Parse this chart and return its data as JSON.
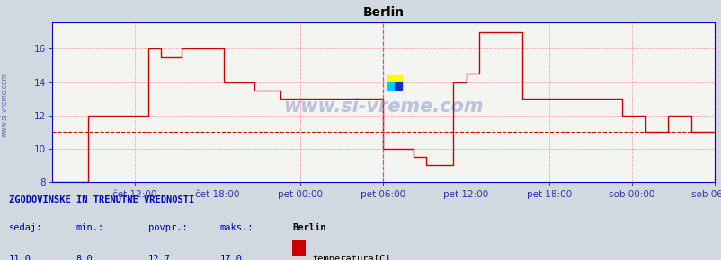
{
  "title": "Berlin",
  "bg_color": "#d0d8e0",
  "plot_bg_color": "#f4f4f0",
  "grid_color": "#ffaaaa",
  "line_color": "#cc0000",
  "avg_value": 11.0,
  "avg_line_color": "#cc0000",
  "ylim": [
    8,
    17.6
  ],
  "yticks": [
    8,
    10,
    12,
    14,
    16
  ],
  "tick_label_color": "#3333aa",
  "title_color": "#000000",
  "watermark": "www.si-vreme.com",
  "watermark_color": "#2244aa",
  "xtick_labels": [
    "čet 12:00",
    "čet 18:00",
    "pet 00:00",
    "pet 06:00",
    "pet 12:00",
    "pet 18:00",
    "sob 00:00",
    "sob 06:00"
  ],
  "xtick_positions": [
    0.125,
    0.25,
    0.375,
    0.5,
    0.625,
    0.75,
    0.875,
    1.0
  ],
  "vline_x": 0.5,
  "vline_right_x": 1.0,
  "footer_bg": "#d0d8e0",
  "footer_text1": "ZGODOVINSKE IN TRENUTNE VREDNOSTI",
  "footer_labels": [
    "sedaj:",
    "min.:",
    "povpr.:",
    "maks.:"
  ],
  "footer_values": [
    "11,0",
    "8,0",
    "12,7",
    "17,0"
  ],
  "footer_station": "Berlin",
  "footer_series": "temperatura[C]",
  "legend_color": "#cc0000",
  "spine_color": "#0000cc",
  "left_label": "www.si-vreme.com",
  "data_x": [
    0.0,
    0.0,
    0.042,
    0.042,
    0.055,
    0.055,
    0.145,
    0.145,
    0.165,
    0.165,
    0.195,
    0.195,
    0.26,
    0.26,
    0.305,
    0.305,
    0.345,
    0.345,
    0.38,
    0.38,
    0.41,
    0.41,
    0.44,
    0.44,
    0.5,
    0.5,
    0.515,
    0.515,
    0.545,
    0.545,
    0.565,
    0.565,
    0.605,
    0.605,
    0.625,
    0.625,
    0.645,
    0.645,
    0.655,
    0.655,
    0.71,
    0.71,
    0.755,
    0.755,
    0.82,
    0.82,
    0.86,
    0.86,
    0.895,
    0.895,
    0.93,
    0.93,
    0.965,
    0.965,
    1.0
  ],
  "data_y": [
    8.0,
    8.0,
    8.0,
    8.0,
    8.0,
    12.0,
    12.0,
    16.0,
    16.0,
    15.5,
    15.5,
    16.0,
    16.0,
    14.0,
    14.0,
    13.5,
    13.5,
    13.0,
    13.0,
    13.0,
    13.0,
    13.0,
    13.0,
    13.0,
    13.0,
    10.0,
    10.0,
    10.0,
    10.0,
    9.5,
    9.5,
    9.0,
    9.0,
    14.0,
    14.0,
    14.5,
    14.5,
    17.0,
    17.0,
    17.0,
    17.0,
    13.0,
    13.0,
    13.0,
    13.0,
    13.0,
    13.0,
    12.0,
    12.0,
    11.0,
    11.0,
    12.0,
    12.0,
    11.0,
    11.0
  ]
}
